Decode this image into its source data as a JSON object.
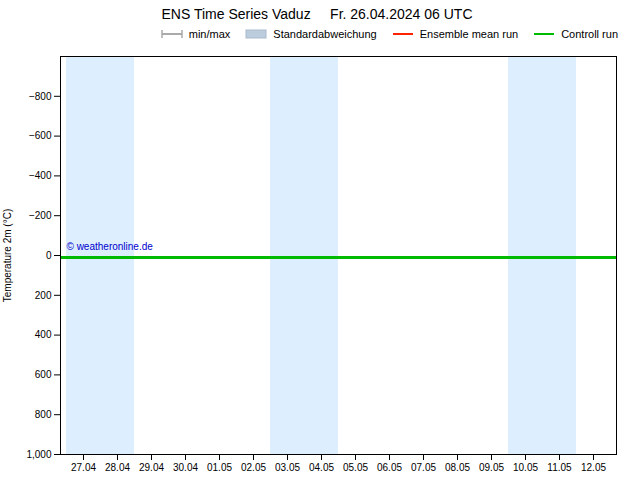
{
  "chart_data": {
    "type": "line",
    "title": "ENS Time Series Vaduz     Fr. 26.04.2024 06 UTC",
    "ylabel": "Temperature 2m (°C)",
    "categories": [
      "27.04",
      "28.04",
      "29.04",
      "30.04",
      "01.05",
      "02.05",
      "03.05",
      "04.05",
      "05.05",
      "06.05",
      "07.05",
      "08.05",
      "09.05",
      "10.05",
      "11.05",
      "12.05"
    ],
    "series": [
      {
        "name": "min/max",
        "type": "range",
        "color": "#aaaaaa",
        "values": [
          null,
          null,
          null,
          null,
          null,
          null,
          null,
          null,
          null,
          null,
          null,
          null,
          null,
          null,
          null,
          null
        ]
      },
      {
        "name": "Standardabweichung",
        "type": "area",
        "color": "#bbccdd",
        "values": [
          null,
          null,
          null,
          null,
          null,
          null,
          null,
          null,
          null,
          null,
          null,
          null,
          null,
          null,
          null,
          null
        ]
      },
      {
        "name": "Ensemble mean run",
        "type": "line",
        "color": "#ff2200",
        "values": [
          10,
          10,
          10,
          10,
          10,
          10,
          10,
          10,
          10,
          10,
          10,
          10,
          10,
          10,
          10,
          10
        ]
      },
      {
        "name": "Controll run",
        "type": "line",
        "color": "#00bb00",
        "values": [
          10,
          10,
          10,
          10,
          10,
          10,
          10,
          10,
          10,
          10,
          10,
          10,
          10,
          10,
          10,
          10
        ]
      }
    ],
    "ylim": [
      1000,
      -1000
    ],
    "yticks": [
      -800,
      -600,
      -400,
      -200,
      0,
      200,
      400,
      600,
      800,
      1000
    ],
    "grid": false,
    "legend": "upper right",
    "bands": {
      "categories": [
        "27.04",
        "28.04",
        "03.05",
        "04.05",
        "10.05",
        "11.05"
      ],
      "color": "#ddeeff"
    },
    "annotations": [
      {
        "text": "© weatheronline.de",
        "color": "#0000cc"
      }
    ]
  }
}
